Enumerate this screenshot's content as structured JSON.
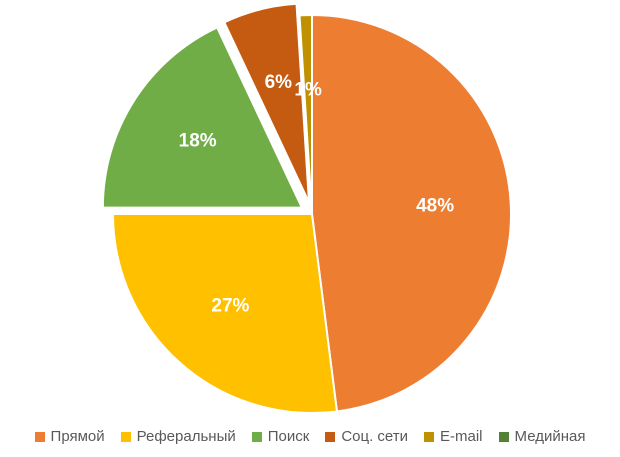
{
  "chart_data": {
    "type": "pie",
    "title": "",
    "legend_position": "bottom",
    "categories": [
      "Прямой",
      "Реферальный",
      "Поиск",
      "Соц. сети",
      "E-mail",
      "Медийная"
    ],
    "values": [
      48,
      27,
      18,
      6,
      1,
      0
    ],
    "labels": [
      "48%",
      "27%",
      "18%",
      "6%",
      "1%",
      ""
    ],
    "colors": [
      "#ED7D31",
      "#FFC000",
      "#70AD47",
      "#C55A11",
      "#BF9000",
      "#548235"
    ],
    "exploded": [
      false,
      false,
      true,
      true,
      false,
      false
    ]
  }
}
